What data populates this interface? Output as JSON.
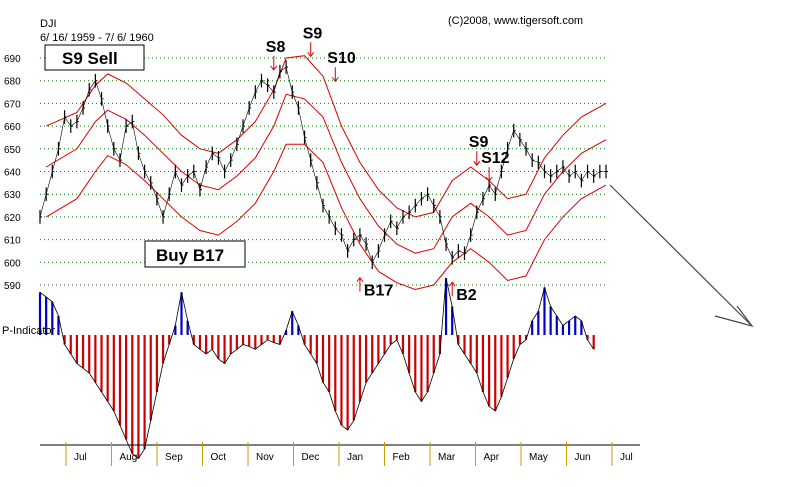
{
  "header": {
    "ticker": "DJI",
    "date_range": "6/ 16/ 1959 - 7/ 6/ 1960",
    "copyright": "(C)2008, www.tigersoft.com"
  },
  "indicator_label": "P-Indicator",
  "colors": {
    "price_bars": "#000000",
    "bands": "#dd0000",
    "grid": "#008000",
    "indicator_positive": "#0000cc",
    "indicator_negative": "#cc0000",
    "signal_arrows": "#dd0000",
    "projection_arrow": "#444444"
  },
  "chart_data": {
    "type": "line",
    "ylim": [
      590,
      690
    ],
    "y_ticks": [
      "690",
      "680",
      "670",
      "660",
      "650",
      "640",
      "630",
      "620",
      "610",
      "600",
      "590"
    ],
    "months": [
      "Jul",
      "Aug",
      "Sep",
      "Oct",
      "Nov",
      "Dec",
      "Jan",
      "Feb",
      "Mar",
      "Apr",
      "May",
      "Jun",
      "Jul"
    ],
    "price": {
      "name": "DJI",
      "x": [
        0,
        2,
        4,
        6,
        8,
        10,
        12,
        14,
        16,
        18,
        20,
        22,
        24,
        26,
        28,
        30,
        32,
        34,
        36,
        38,
        40,
        42,
        44,
        46,
        48,
        50,
        52,
        54,
        56,
        58,
        60,
        62,
        64,
        66,
        68,
        70,
        72,
        74,
        76,
        78,
        80,
        82,
        84,
        86,
        88,
        90,
        92,
        94,
        96,
        98,
        100,
        102,
        104,
        106,
        108,
        110,
        112,
        114,
        116,
        118,
        120,
        122,
        124,
        126,
        128,
        130,
        132,
        134,
        136,
        138,
        140,
        142,
        144,
        146,
        148,
        150,
        152,
        154,
        156,
        158,
        160,
        162,
        164,
        166,
        168,
        170,
        172,
        174,
        176,
        178,
        180,
        182,
        184
      ],
      "values": [
        620,
        630,
        640,
        650,
        664,
        660,
        662,
        668,
        676,
        680,
        672,
        660,
        650,
        645,
        660,
        662,
        648,
        640,
        635,
        628,
        620,
        630,
        640,
        634,
        638,
        640,
        632,
        642,
        648,
        646,
        640,
        645,
        652,
        660,
        668,
        675,
        680,
        678,
        675,
        684,
        686,
        675,
        668,
        655,
        645,
        635,
        625,
        620,
        615,
        612,
        605,
        610,
        612,
        608,
        600,
        605,
        612,
        618,
        615,
        620,
        622,
        625,
        628,
        630,
        625,
        620,
        608,
        602,
        605,
        604,
        612,
        622,
        628,
        634,
        630,
        640,
        650,
        658,
        654,
        650,
        645,
        644,
        640,
        638,
        640,
        642,
        638,
        640,
        636,
        640,
        638,
        640,
        640
      ]
    },
    "upper_band": {
      "x": [
        2,
        12,
        18,
        22,
        28,
        34,
        40,
        46,
        52,
        58,
        64,
        70,
        76,
        80,
        86,
        92,
        98,
        104,
        110,
        116,
        122,
        128,
        134,
        140,
        146,
        152,
        158,
        164,
        170,
        176,
        184
      ],
      "values": [
        660,
        666,
        678,
        683,
        679,
        672,
        665,
        656,
        650,
        648,
        654,
        662,
        676,
        690,
        691,
        682,
        660,
        644,
        632,
        624,
        620,
        622,
        636,
        642,
        636,
        628,
        630,
        646,
        656,
        664,
        670
      ]
    },
    "middle_band": {
      "x": [
        2,
        12,
        18,
        22,
        28,
        34,
        40,
        46,
        52,
        58,
        64,
        70,
        76,
        80,
        86,
        92,
        98,
        104,
        110,
        116,
        122,
        128,
        134,
        140,
        146,
        152,
        158,
        164,
        170,
        176,
        184
      ],
      "values": [
        642,
        650,
        662,
        667,
        663,
        656,
        648,
        640,
        634,
        632,
        638,
        646,
        660,
        674,
        672,
        664,
        644,
        628,
        616,
        608,
        604,
        606,
        620,
        626,
        620,
        612,
        614,
        630,
        640,
        648,
        654
      ]
    },
    "lower_band": {
      "x": [
        2,
        12,
        18,
        22,
        28,
        34,
        40,
        46,
        52,
        58,
        64,
        70,
        76,
        80,
        86,
        92,
        98,
        104,
        110,
        116,
        122,
        128,
        134,
        140,
        146,
        152,
        158,
        164,
        170,
        176,
        184
      ],
      "values": [
        620,
        628,
        640,
        647,
        643,
        636,
        628,
        620,
        614,
        612,
        618,
        626,
        640,
        652,
        652,
        644,
        624,
        608,
        596,
        591,
        588,
        590,
        600,
        606,
        600,
        592,
        594,
        610,
        620,
        628,
        634
      ]
    },
    "indicator": {
      "name": "P-Indicator",
      "x": [
        0,
        2,
        4,
        6,
        8,
        10,
        12,
        14,
        16,
        18,
        20,
        22,
        24,
        26,
        28,
        30,
        32,
        34,
        36,
        38,
        40,
        42,
        44,
        46,
        48,
        50,
        52,
        54,
        56,
        58,
        60,
        62,
        64,
        66,
        68,
        70,
        72,
        74,
        76,
        78,
        80,
        82,
        84,
        86,
        88,
        90,
        92,
        94,
        96,
        98,
        100,
        102,
        104,
        106,
        108,
        110,
        112,
        114,
        116,
        118,
        120,
        122,
        124,
        126,
        128,
        130,
        132,
        134,
        136,
        138,
        140,
        142,
        144,
        146,
        148,
        150,
        152,
        154,
        156,
        158,
        160,
        162,
        164,
        166,
        168,
        170,
        172,
        174,
        176,
        178,
        180
      ],
      "values": [
        45,
        40,
        35,
        20,
        -10,
        -20,
        -30,
        -35,
        -40,
        -50,
        -60,
        -70,
        -80,
        -95,
        -110,
        -125,
        -130,
        -120,
        -90,
        -60,
        -30,
        -10,
        10,
        45,
        15,
        -10,
        -15,
        -20,
        -15,
        -25,
        -30,
        -20,
        -15,
        -10,
        -12,
        -15,
        -10,
        -5,
        -8,
        -10,
        5,
        25,
        10,
        -10,
        -20,
        -30,
        -50,
        -60,
        -80,
        -95,
        -100,
        -90,
        -70,
        -50,
        -40,
        -30,
        -20,
        -10,
        -5,
        -20,
        -40,
        -60,
        -70,
        -60,
        -40,
        -20,
        60,
        30,
        -10,
        -20,
        -30,
        -40,
        -60,
        -75,
        -80,
        -65,
        -45,
        -25,
        -10,
        -5,
        15,
        25,
        50,
        30,
        20,
        10,
        15,
        20,
        15,
        -5,
        -15
      ]
    },
    "signals": [
      {
        "label": "S8",
        "x": 76,
        "y": 683,
        "direction": "down"
      },
      {
        "label": "S9",
        "x": 88,
        "y": 689,
        "direction": "down"
      },
      {
        "label": "S10",
        "x": 96,
        "y": 678,
        "direction": "down"
      },
      {
        "label": "S9",
        "x": 142,
        "y": 641,
        "direction": "down"
      },
      {
        "label": "S12",
        "x": 146,
        "y": 634,
        "direction": "down"
      },
      {
        "label": "B17",
        "x": 104,
        "y": 595,
        "direction": "up"
      },
      {
        "label": "B2",
        "x": 134,
        "y": 593,
        "direction": "up"
      }
    ],
    "boxed_labels": [
      {
        "label": "S9 Sell"
      },
      {
        "label": "Buy B17"
      }
    ],
    "grid": true,
    "legend": "none"
  }
}
